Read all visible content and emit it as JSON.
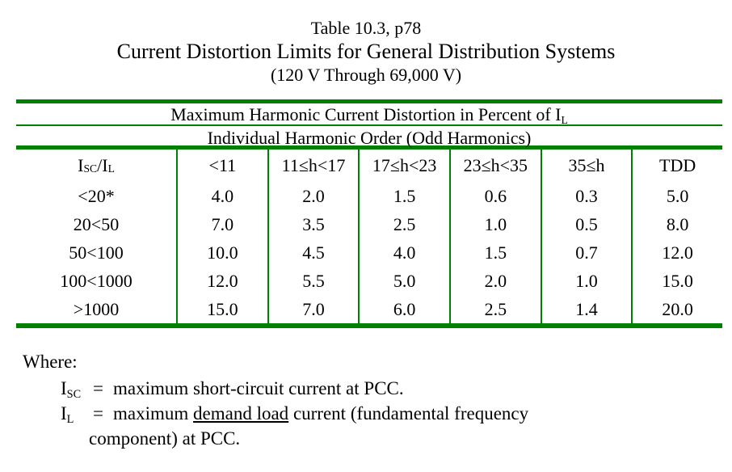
{
  "title": {
    "line1": "Table 10.3, p78",
    "line2": "Current Distortion Limits for General Distribution Systems",
    "line3": "(120 V Through 69,000 V)"
  },
  "table": {
    "span1": {
      "text": "Maximum Harmonic Current Distortion in Percent of I",
      "sub": "L"
    },
    "span2": "Individual Harmonic Order (Odd Harmonics)",
    "header": {
      "first": {
        "i1": "I",
        "s1": "SC",
        "slash": "/",
        "i2": "I",
        "s2": "L"
      },
      "cols": [
        "<11",
        "11≤h<17",
        "17≤h<23",
        "23≤h<35",
        "35≤h",
        "TDD"
      ]
    },
    "rows": [
      {
        "label": "<20*",
        "values": [
          "4.0",
          "2.0",
          "1.5",
          "0.6",
          "0.3",
          "5.0"
        ]
      },
      {
        "label": "20<50",
        "values": [
          "7.0",
          "3.5",
          "2.5",
          "1.0",
          "0.5",
          "8.0"
        ]
      },
      {
        "label": "50<100",
        "values": [
          "10.0",
          "4.5",
          "4.0",
          "1.5",
          "0.7",
          "12.0"
        ]
      },
      {
        "label": "100<1000",
        "values": [
          "12.0",
          "5.5",
          "5.0",
          "2.0",
          "1.0",
          "15.0"
        ]
      },
      {
        "label": ">1000",
        "values": [
          "15.0",
          "7.0",
          "6.0",
          "2.5",
          "1.4",
          "20.0"
        ]
      }
    ]
  },
  "footnote": {
    "where": "Where:",
    "defs": [
      {
        "sym_base": "I",
        "sym_sub": "SC",
        "eq": "=",
        "text": "maximum short-circuit current at PCC."
      },
      {
        "sym_base": "I",
        "sym_sub": "L",
        "eq": "=",
        "text_pre": "maximum ",
        "text_u": "demand load",
        "text_post": " current (fundamental frequency",
        "cont": "component) at PCC."
      }
    ]
  },
  "colors": {
    "table_green": "#008000",
    "text": "#000000"
  }
}
